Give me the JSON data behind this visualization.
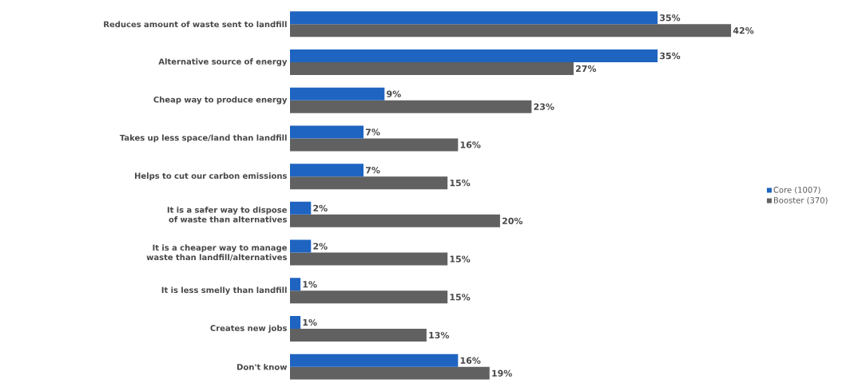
{
  "chart_data": {
    "type": "bar",
    "orientation": "horizontal",
    "legend": "right",
    "categories": [
      "Reduces amount of waste sent to landfill",
      "Alternative source of energy",
      "Cheap way to produce energy",
      "Takes up less space/land than landfill",
      "Helps to cut our carbon emissions",
      "It is a safer way to dispose of waste than alternatives",
      "It is a cheaper way to manage waste than landfill/alternatives",
      "It is less smelly than landfill",
      "Creates new jobs",
      "Don't know"
    ],
    "series": [
      {
        "name": "Core (1007)",
        "color": "#1f64c0",
        "values": [
          35,
          35,
          9,
          7,
          7,
          2,
          2,
          1,
          1,
          16
        ],
        "value_labels": [
          "35%",
          "35%",
          "9%",
          "7%",
          "7%",
          "2%",
          "2%",
          "1%",
          "1%",
          "16%"
        ]
      },
      {
        "name": "Booster (370)",
        "color": "#616161",
        "values": [
          42,
          27,
          23,
          16,
          15,
          20,
          15,
          15,
          13,
          19
        ],
        "value_labels": [
          "42%",
          "27%",
          "23%",
          "16%",
          "15%",
          "20%",
          "15%",
          "15%",
          "13%",
          "19%"
        ]
      }
    ]
  }
}
